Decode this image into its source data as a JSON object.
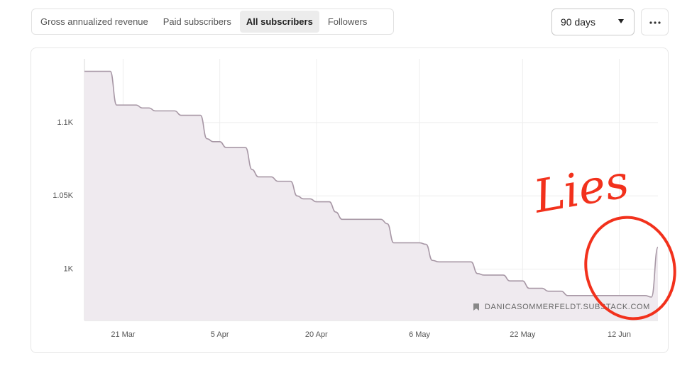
{
  "tabs": [
    "Gross annualized revenue",
    "Paid subscribers",
    "All subscribers",
    "Followers"
  ],
  "selected_tab": 2,
  "range_select": "90 days",
  "chart_data": {
    "type": "area",
    "color": "#a797a5",
    "fill": "#efeaef",
    "watermark": "DANICASOMMERFELDT.SUBSTACK.COM",
    "annotation": "Lies",
    "grid": true,
    "categories": [
      null,
      null,
      null,
      null,
      null,
      null,
      "21 Mar",
      null,
      null,
      null,
      null,
      null,
      null,
      null,
      null,
      null,
      null,
      null,
      null,
      null,
      null,
      "5 Apr",
      null,
      null,
      null,
      null,
      null,
      null,
      null,
      null,
      null,
      null,
      null,
      null,
      null,
      null,
      "20 Apr",
      null,
      null,
      null,
      null,
      null,
      null,
      null,
      null,
      null,
      null,
      null,
      null,
      null,
      null,
      null,
      "6 May",
      null,
      null,
      null,
      null,
      null,
      null,
      null,
      null,
      null,
      null,
      null,
      null,
      null,
      null,
      null,
      "22 May",
      null,
      null,
      null,
      null,
      null,
      null,
      null,
      null,
      null,
      null,
      null,
      null,
      null,
      null,
      "12 Jun",
      null,
      null,
      null,
      null,
      null,
      null
    ],
    "values": [
      1135,
      1135,
      1135,
      1135,
      1135,
      1112,
      1112,
      1112,
      1112,
      1110,
      1110,
      1108,
      1108,
      1108,
      1108,
      1105,
      1105,
      1105,
      1105,
      1089,
      1087,
      1087,
      1083,
      1083,
      1083,
      1083,
      1068,
      1063,
      1063,
      1063,
      1060,
      1060,
      1060,
      1050,
      1048,
      1048,
      1046,
      1046,
      1046,
      1039,
      1034,
      1034,
      1034,
      1034,
      1034,
      1034,
      1034,
      1031,
      1018,
      1018,
      1018,
      1018,
      1018,
      1017,
      1006,
      1005,
      1005,
      1005,
      1005,
      1005,
      1005,
      997,
      996,
      996,
      996,
      996,
      992,
      992,
      992,
      987,
      987,
      987,
      985,
      985,
      985,
      982,
      982,
      982,
      982,
      982,
      982,
      982,
      982,
      982,
      982,
      982,
      982,
      982,
      981,
      1015
    ],
    "ylim": [
      965,
      1143.5
    ],
    "yticks": [
      {
        "value": 1000,
        "label": "1K"
      },
      {
        "value": 1050,
        "label": "1.05K"
      },
      {
        "value": 1100,
        "label": "1.1K"
      }
    ]
  }
}
